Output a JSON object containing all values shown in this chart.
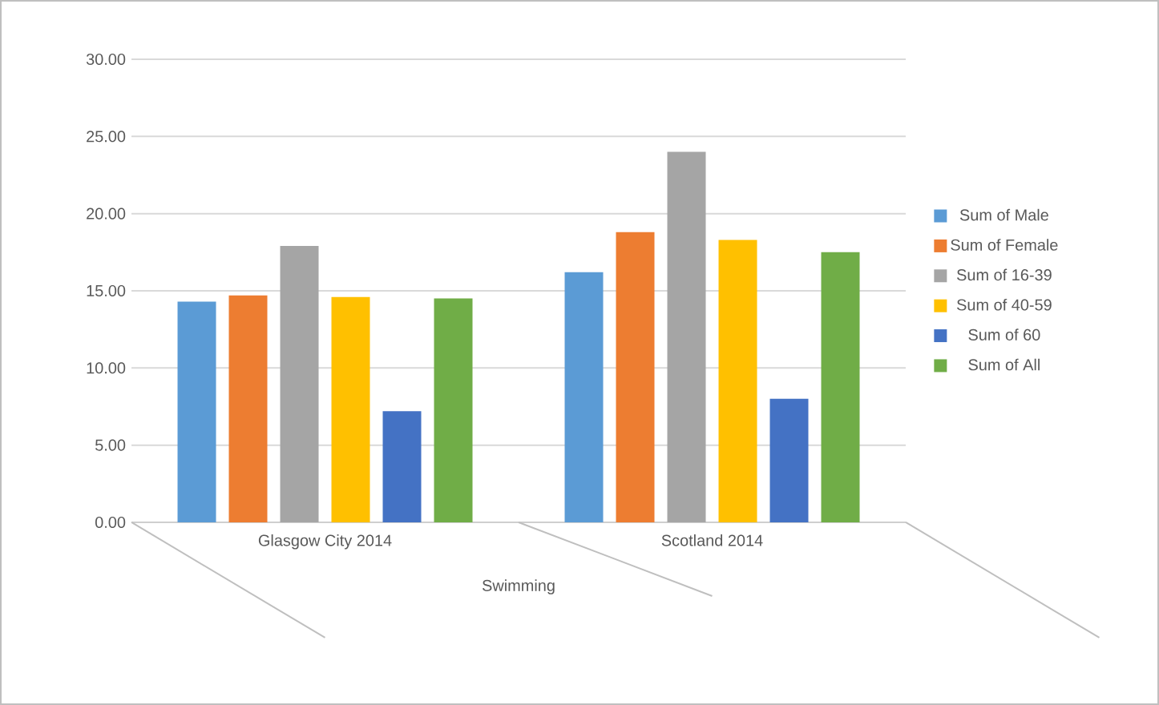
{
  "chart_data": {
    "type": "bar",
    "categories": [
      "Glasgow City 2014",
      "Scotland 2014"
    ],
    "xlabel": "Swimming",
    "series": [
      {
        "name": "Sum of Male",
        "color": "#5b9bd5",
        "values": [
          14.3,
          16.2
        ]
      },
      {
        "name": "Sum of Female",
        "color": "#ed7d31",
        "values": [
          14.7,
          18.8
        ]
      },
      {
        "name": "Sum of 16-39",
        "color": "#a5a5a5",
        "values": [
          17.9,
          24.0
        ]
      },
      {
        "name": "Sum of 40-59",
        "color": "#ffc000",
        "values": [
          14.6,
          18.3
        ]
      },
      {
        "name": "Sum of 60",
        "color": "#4472c4",
        "values": [
          7.2,
          8.0
        ]
      },
      {
        "name": "Sum of All",
        "color": "#70ad47",
        "values": [
          14.5,
          17.5
        ]
      }
    ],
    "ylim": [
      0,
      30
    ],
    "yticks": [
      {
        "value": 0,
        "label": "0.00"
      },
      {
        "value": 5,
        "label": "5.00"
      },
      {
        "value": 10,
        "label": "10.00"
      },
      {
        "value": 15,
        "label": "15.00"
      },
      {
        "value": 20,
        "label": "20.00"
      },
      {
        "value": 25,
        "label": "25.00"
      },
      {
        "value": 30,
        "label": "30.00"
      }
    ],
    "grid": "y",
    "legend": "right"
  }
}
